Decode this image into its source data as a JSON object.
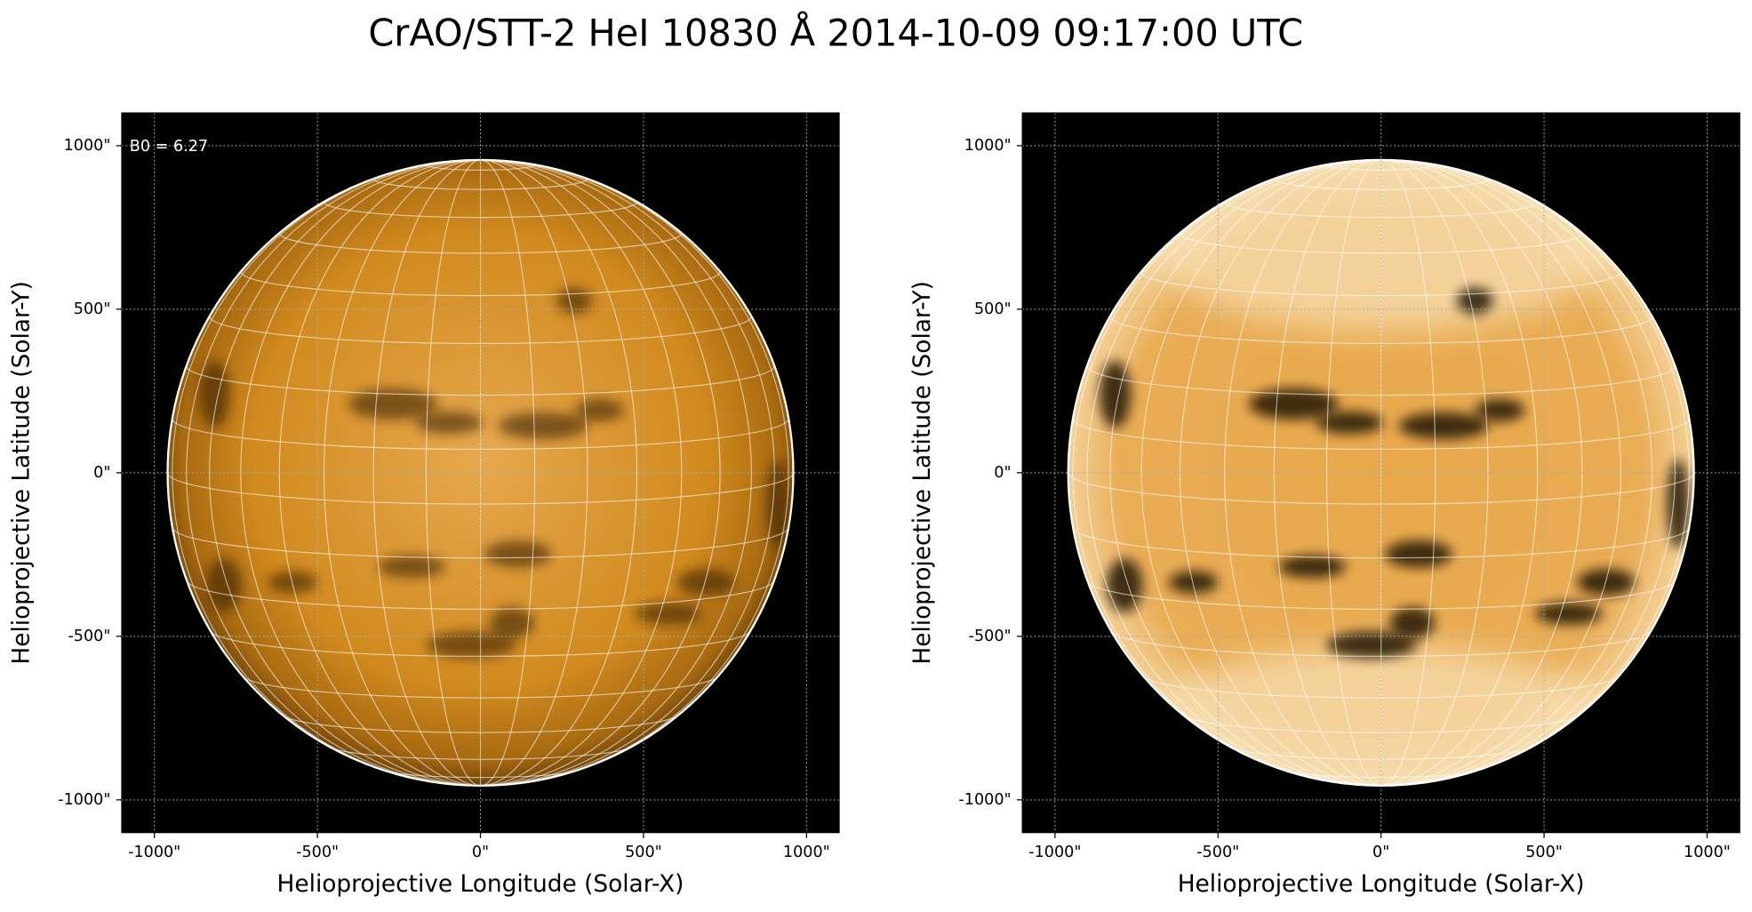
{
  "title": "CrAO/STT-2 HeI 10830 Å 2014-10-09 09:17:00 UTC",
  "chart_data": [
    {
      "type": "image",
      "annotation": "B0 = 6.27",
      "xlabel": "Helioprojective Longitude (Solar-X)",
      "ylabel": "Helioprojective Latitude (Solar-Y)",
      "xlim": [
        -1100,
        1100
      ],
      "ylim": [
        -1100,
        1100
      ],
      "xticks": [
        {
          "value": -1000,
          "label": "-1000\""
        },
        {
          "value": -500,
          "label": "-500\""
        },
        {
          "value": 0,
          "label": "0\""
        },
        {
          "value": 500,
          "label": "500\""
        },
        {
          "value": 1000,
          "label": "1000\""
        }
      ],
      "yticks": [
        {
          "value": -1000,
          "label": "-1000\""
        },
        {
          "value": -500,
          "label": "-500\""
        },
        {
          "value": 0,
          "label": "0\""
        },
        {
          "value": 500,
          "label": "500\""
        },
        {
          "value": 1000,
          "label": "1000\""
        }
      ],
      "grid": true
    },
    {
      "type": "image",
      "xlabel": "Helioprojective Longitude (Solar-X)",
      "ylabel": "Helioprojective Latitude (Solar-Y)",
      "xlim": [
        -1100,
        1100
      ],
      "ylim": [
        -1100,
        1100
      ],
      "xticks": [
        {
          "value": -1000,
          "label": "-1000\""
        },
        {
          "value": -500,
          "label": "-500\""
        },
        {
          "value": 0,
          "label": "0\""
        },
        {
          "value": 500,
          "label": "500\""
        },
        {
          "value": 1000,
          "label": "1000\""
        }
      ],
      "yticks": [
        {
          "value": -1000,
          "label": "-1000\""
        },
        {
          "value": -500,
          "label": "-500\""
        },
        {
          "value": 0,
          "label": "0\""
        },
        {
          "value": 500,
          "label": "500\""
        },
        {
          "value": 1000,
          "label": "1000\""
        }
      ],
      "grid": true
    }
  ]
}
